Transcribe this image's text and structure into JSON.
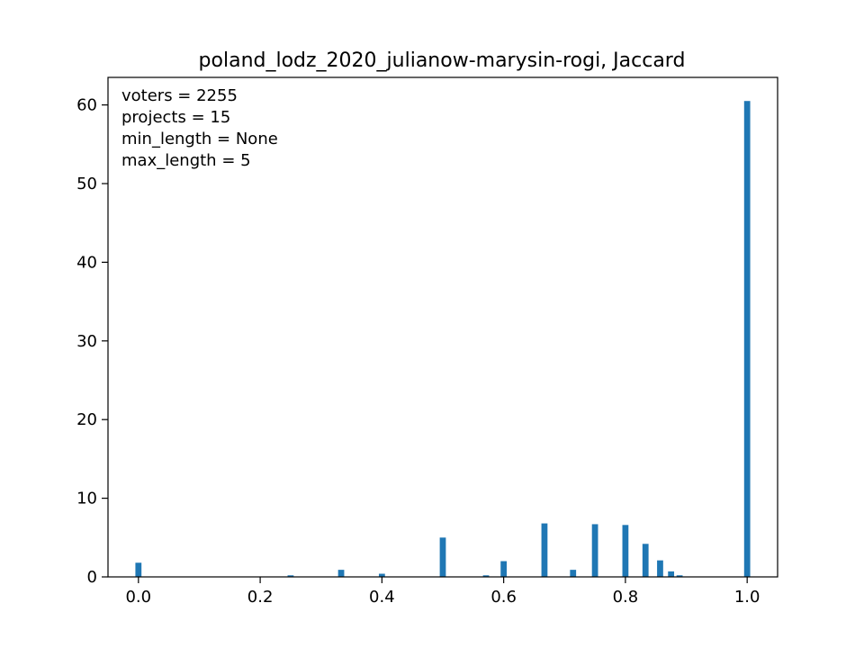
{
  "chart_data": {
    "type": "bar",
    "title": "poland_lodz_2020_julianow-marysin-rogi, Jaccard",
    "xlabel": "",
    "ylabel": "",
    "xlim": [
      -0.05,
      1.05
    ],
    "ylim": [
      0,
      63.5
    ],
    "bar_width": 0.01,
    "bar_color": "#1f77b4",
    "grid": false,
    "x_ticks": [
      0.0,
      0.2,
      0.4,
      0.6,
      0.8,
      1.0
    ],
    "x_tick_labels": [
      "0.0",
      "0.2",
      "0.4",
      "0.6",
      "0.8",
      "1.0"
    ],
    "y_ticks": [
      0,
      10,
      20,
      30,
      40,
      50,
      60
    ],
    "y_tick_labels": [
      "0",
      "10",
      "20",
      "30",
      "40",
      "50",
      "60"
    ],
    "annotations": [
      "voters = 2255",
      "projects = 15",
      "min_length = None",
      "max_length = 5"
    ],
    "x": [
      0.0,
      0.25,
      0.333,
      0.4,
      0.5,
      0.571,
      0.6,
      0.667,
      0.714,
      0.75,
      0.8,
      0.833,
      0.857,
      0.875,
      0.889,
      1.0
    ],
    "values": [
      1.8,
      0.2,
      0.9,
      0.4,
      5.0,
      0.2,
      2.0,
      6.8,
      0.9,
      6.7,
      6.6,
      4.2,
      2.1,
      0.7,
      0.2,
      60.5
    ]
  }
}
